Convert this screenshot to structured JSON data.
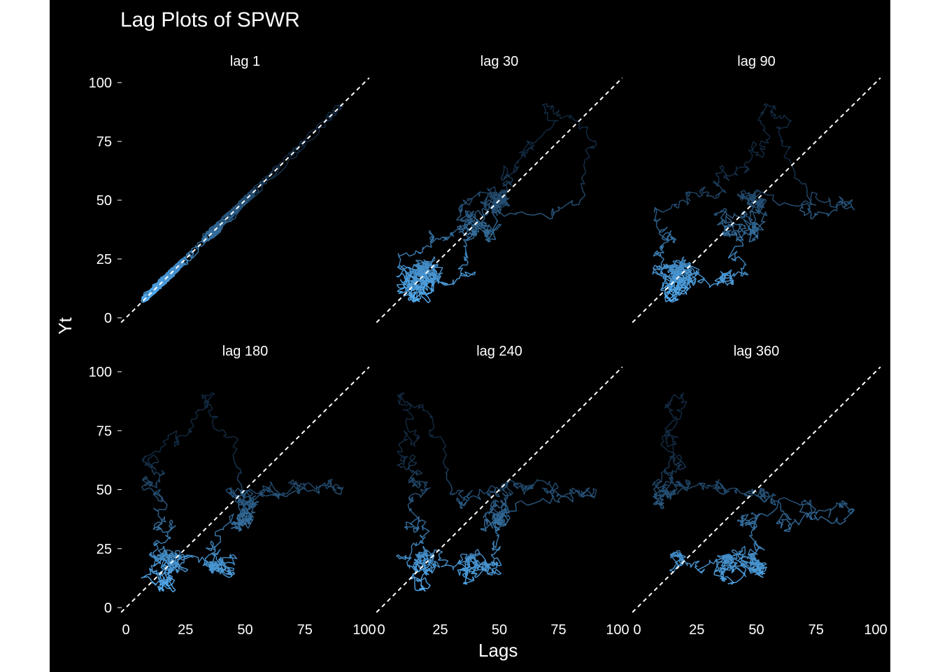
{
  "chart_data": {
    "type": "line",
    "title": "Lag Plots of SPWR",
    "xlabel": "Lags",
    "ylabel": "Yt",
    "xlim": [
      0,
      100
    ],
    "ylim": [
      0,
      100
    ],
    "x_ticks": [
      "0",
      "25",
      "50",
      "75",
      "100"
    ],
    "y_ticks": [
      "0",
      "25",
      "50",
      "75",
      "100"
    ],
    "reference_line": "y = x (dashed, white)",
    "colors": {
      "background": "#000000",
      "line_light": "#56B1F7",
      "line_dark": "#132B43",
      "text": "#ffffff",
      "reference": "#ffffff"
    },
    "panels": [
      {
        "label": "lag 1",
        "lag": 1
      },
      {
        "label": "lag 30",
        "lag": 30
      },
      {
        "label": "lag 90",
        "lag": 90
      },
      {
        "label": "lag 180",
        "lag": 180
      },
      {
        "label": "lag 240",
        "lag": 240
      },
      {
        "label": "lag 360",
        "lag": 360
      }
    ],
    "series_approx": [
      [
        4,
        4
      ],
      [
        5,
        6
      ],
      [
        6,
        5
      ],
      [
        5,
        4
      ],
      [
        7,
        6
      ],
      [
        8,
        7
      ],
      [
        7,
        8
      ],
      [
        9,
        9
      ],
      [
        10,
        8
      ],
      [
        8,
        6
      ],
      [
        6,
        7
      ],
      [
        9,
        10
      ],
      [
        11,
        10
      ],
      [
        12,
        11
      ],
      [
        10,
        12
      ],
      [
        13,
        13
      ],
      [
        15,
        14
      ],
      [
        14,
        16
      ],
      [
        16,
        15
      ],
      [
        17,
        17
      ],
      [
        18,
        16
      ],
      [
        16,
        14
      ],
      [
        14,
        15
      ],
      [
        18,
        18
      ],
      [
        20,
        19
      ],
      [
        19,
        21
      ],
      [
        21,
        20
      ],
      [
        22,
        22
      ],
      [
        24,
        23
      ],
      [
        23,
        25
      ],
      [
        25,
        24
      ],
      [
        26,
        26
      ],
      [
        22,
        23
      ],
      [
        20,
        21
      ],
      [
        18,
        17
      ],
      [
        15,
        16
      ],
      [
        12,
        13
      ],
      [
        14,
        12
      ],
      [
        16,
        17
      ],
      [
        19,
        20
      ],
      [
        22,
        21
      ],
      [
        25,
        26
      ],
      [
        27,
        25
      ],
      [
        26,
        28
      ],
      [
        28,
        27
      ],
      [
        30,
        29
      ],
      [
        29,
        31
      ],
      [
        31,
        30
      ],
      [
        33,
        32
      ],
      [
        32,
        34
      ],
      [
        35,
        33
      ],
      [
        34,
        36
      ],
      [
        36,
        37
      ],
      [
        38,
        36
      ],
      [
        37,
        39
      ],
      [
        40,
        41
      ],
      [
        42,
        40
      ],
      [
        43,
        44
      ],
      [
        45,
        46
      ],
      [
        47,
        45
      ],
      [
        46,
        48
      ],
      [
        49,
        50
      ],
      [
        51,
        49
      ],
      [
        50,
        52
      ],
      [
        53,
        54
      ],
      [
        55,
        53
      ],
      [
        54,
        56
      ],
      [
        57,
        58
      ],
      [
        59,
        56
      ],
      [
        58,
        60
      ],
      [
        61,
        62
      ],
      [
        63,
        60
      ],
      [
        60,
        58
      ],
      [
        57,
        55
      ],
      [
        55,
        57
      ],
      [
        58,
        54
      ],
      [
        52,
        50
      ],
      [
        49,
        47
      ],
      [
        46,
        48
      ],
      [
        48,
        45
      ],
      [
        44,
        42
      ],
      [
        41,
        43
      ],
      [
        43,
        46
      ],
      [
        47,
        49
      ],
      [
        50,
        53
      ],
      [
        54,
        57
      ],
      [
        58,
        61
      ],
      [
        62,
        64
      ],
      [
        65,
        63
      ],
      [
        64,
        67
      ],
      [
        68,
        70
      ],
      [
        71,
        73
      ],
      [
        74,
        72
      ],
      [
        73,
        76
      ],
      [
        77,
        78
      ],
      [
        79,
        77
      ],
      [
        78,
        80
      ],
      [
        81,
        83
      ],
      [
        84,
        82
      ],
      [
        83,
        86
      ],
      [
        87,
        85
      ],
      [
        86,
        88
      ],
      [
        89,
        91
      ],
      [
        92,
        90
      ],
      [
        91,
        94
      ],
      [
        95,
        96
      ],
      [
        97,
        95
      ],
      [
        96,
        92
      ],
      [
        93,
        89
      ],
      [
        90,
        86
      ],
      [
        87,
        84
      ],
      [
        85,
        81
      ],
      [
        82,
        79
      ],
      [
        80,
        76
      ],
      [
        77,
        74
      ],
      [
        75,
        72
      ],
      [
        73,
        70
      ],
      [
        71,
        69
      ],
      [
        70,
        66
      ],
      [
        67,
        64
      ],
      [
        65,
        62
      ],
      [
        63,
        60
      ],
      [
        61,
        58
      ],
      [
        59,
        57
      ],
      [
        58,
        55
      ],
      [
        56,
        54
      ],
      [
        55,
        52
      ],
      [
        53,
        51
      ],
      [
        52,
        50
      ],
      [
        51,
        49
      ],
      [
        50,
        47
      ],
      [
        48,
        46
      ],
      [
        47,
        45
      ],
      [
        46,
        44
      ],
      [
        45,
        43
      ],
      [
        44,
        42
      ],
      [
        43,
        41
      ],
      [
        42,
        40
      ],
      [
        41,
        39
      ],
      [
        40,
        38
      ],
      [
        39,
        37
      ],
      [
        38,
        36
      ],
      [
        37,
        35
      ],
      [
        36,
        34
      ],
      [
        35,
        33
      ],
      [
        34,
        32
      ],
      [
        33,
        31
      ],
      [
        32,
        30
      ],
      [
        31,
        29
      ],
      [
        30,
        28
      ],
      [
        29,
        27
      ],
      [
        28,
        26
      ],
      [
        27,
        25
      ],
      [
        26,
        24
      ],
      [
        25,
        23
      ],
      [
        24,
        22
      ],
      [
        23,
        21
      ],
      [
        22,
        20
      ],
      [
        21,
        19
      ],
      [
        20,
        18
      ],
      [
        19,
        17
      ],
      [
        18,
        16
      ],
      [
        17,
        15
      ],
      [
        16,
        14
      ],
      [
        15,
        13
      ],
      [
        14,
        12
      ],
      [
        13,
        11
      ],
      [
        12,
        10
      ],
      [
        11,
        9
      ],
      [
        10,
        8
      ],
      [
        9,
        7
      ],
      [
        8,
        6
      ],
      [
        7,
        5
      ],
      [
        6,
        5
      ],
      [
        5,
        4
      ],
      [
        4,
        3
      ]
    ]
  }
}
